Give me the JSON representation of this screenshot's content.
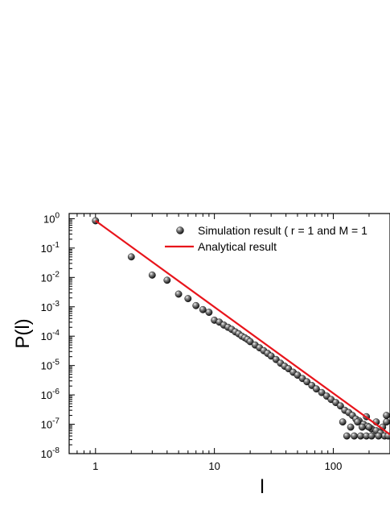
{
  "chart_data": {
    "type": "scatter",
    "xlabel": "l",
    "ylabel": "P(l)",
    "x_scale": "log",
    "y_scale": "log",
    "xlim": [
      0.6,
      300
    ],
    "ylim": [
      1e-08,
      1.5
    ],
    "grid": false,
    "legend_position": "top-right",
    "x_tick_labels": [
      "1",
      "10",
      "100"
    ],
    "x_tick_values": [
      1,
      10,
      100
    ],
    "y_tick_labels": [
      {
        "base": "10",
        "exp": "0",
        "value": 1
      },
      {
        "base": "10",
        "exp": "-1",
        "value": 0.1
      },
      {
        "base": "10",
        "exp": "-2",
        "value": 0.01
      },
      {
        "base": "10",
        "exp": "-3",
        "value": 0.001
      },
      {
        "base": "10",
        "exp": "-4",
        "value": 0.0001
      },
      {
        "base": "10",
        "exp": "-5",
        "value": 1e-05
      },
      {
        "base": "10",
        "exp": "-6",
        "value": 1e-06
      },
      {
        "base": "10",
        "exp": "-7",
        "value": 1e-07
      },
      {
        "base": "10",
        "exp": "-8",
        "value": 1e-08
      }
    ],
    "series": [
      {
        "name": "Simulation result ( r = 1 and M = 1",
        "kind": "points",
        "color": "#1a1a1a",
        "points": [
          [
            1,
            0.85
          ],
          [
            2,
            0.05
          ],
          [
            3,
            0.012
          ],
          [
            4,
            0.008
          ],
          [
            5,
            0.0027
          ],
          [
            6,
            0.0019
          ],
          [
            7,
            0.0011
          ],
          [
            8,
            0.0008
          ],
          [
            9,
            0.00065
          ],
          [
            10,
            0.00035
          ],
          [
            11,
            0.0003
          ],
          [
            12,
            0.00024
          ],
          [
            13,
            0.0002
          ],
          [
            14,
            0.00017
          ],
          [
            15,
            0.00014
          ],
          [
            16,
            0.00012
          ],
          [
            17,
            0.0001
          ],
          [
            18,
            8.8e-05
          ],
          [
            19,
            7.7e-05
          ],
          [
            20,
            6.5e-05
          ],
          [
            22,
            5e-05
          ],
          [
            24,
            4e-05
          ],
          [
            26,
            3.2e-05
          ],
          [
            28,
            2.6e-05
          ],
          [
            30,
            2.1e-05
          ],
          [
            33,
            1.6e-05
          ],
          [
            36,
            1.2e-05
          ],
          [
            39,
            9.5e-06
          ],
          [
            42,
            7.8e-06
          ],
          [
            46,
            5.9e-06
          ],
          [
            50,
            4.7e-06
          ],
          [
            55,
            3.6e-06
          ],
          [
            60,
            2.8e-06
          ],
          [
            66,
            2.1e-06
          ],
          [
            72,
            1.6e-06
          ],
          [
            80,
            1.2e-06
          ],
          [
            88,
            9.1e-07
          ],
          [
            96,
            7e-07
          ],
          [
            105,
            5.5e-07
          ],
          [
            115,
            4.2e-07
          ],
          [
            125,
            3e-07
          ],
          [
            135,
            2.5e-07
          ],
          [
            145,
            2e-07
          ],
          [
            155,
            1.5e-07
          ],
          [
            165,
            1.3e-07
          ],
          [
            180,
            1e-07
          ],
          [
            195,
            8.5e-08
          ],
          [
            210,
            7e-08
          ],
          [
            230,
            6e-08
          ],
          [
            250,
            5e-08
          ],
          [
            270,
            4e-08
          ],
          [
            290,
            4e-08
          ],
          [
            130,
            4e-08
          ],
          [
            150,
            4e-08
          ],
          [
            170,
            4e-08
          ],
          [
            190,
            4e-08
          ],
          [
            210,
            4e-08
          ],
          [
            240,
            4e-08
          ],
          [
            140,
            8e-08
          ],
          [
            175,
            8e-08
          ],
          [
            200,
            8e-08
          ],
          [
            260,
            8e-08
          ],
          [
            120,
            1.2e-07
          ],
          [
            160,
            1.2e-07
          ],
          [
            230,
            1.2e-07
          ],
          [
            280,
            1.2e-07
          ],
          [
            190,
            1.8e-07
          ],
          [
            280,
            2e-07
          ]
        ]
      },
      {
        "name": "Analytical result",
        "kind": "line",
        "color": "#e8141b",
        "points": [
          [
            1,
            0.85
          ],
          [
            300,
            4.5e-08
          ]
        ]
      }
    ]
  }
}
